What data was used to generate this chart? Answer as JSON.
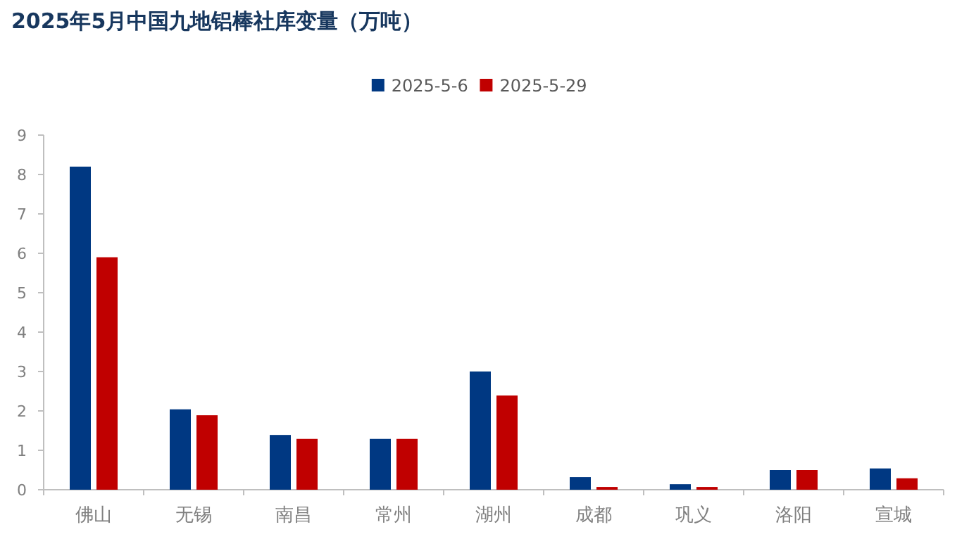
{
  "chart_data": {
    "type": "bar",
    "title": "2025年5月中国九地铝棒社库变量（万吨）",
    "categories": [
      "佛山",
      "无锡",
      "南昌",
      "常州",
      "湖州",
      "成都",
      "巩义",
      "洛阳",
      "宣城"
    ],
    "series": [
      {
        "name": "2025-5-6",
        "color": "#003882",
        "values": [
          8.2,
          2.04,
          1.39,
          1.29,
          3.0,
          0.32,
          0.14,
          0.5,
          0.54
        ]
      },
      {
        "name": "2025-5-29",
        "color": "#c00000",
        "values": [
          5.9,
          1.89,
          1.29,
          1.29,
          2.39,
          0.07,
          0.07,
          0.5,
          0.29
        ]
      }
    ],
    "ylim": [
      0,
      9
    ],
    "yticks": [
      0,
      1,
      2,
      3,
      4,
      5,
      6,
      7,
      8,
      9
    ],
    "grid": false,
    "legend": "top"
  }
}
